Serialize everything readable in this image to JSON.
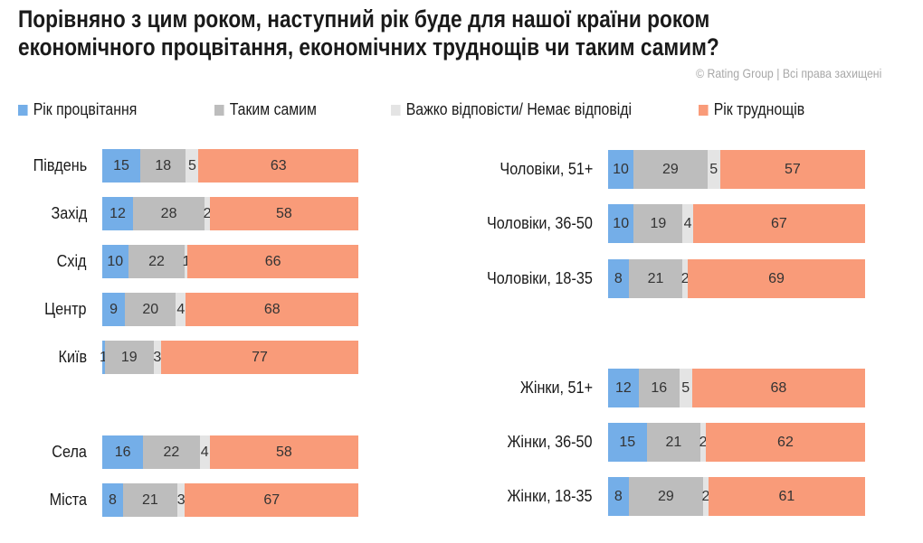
{
  "chart_data": {
    "type": "bar",
    "orientation": "horizontal",
    "stacked": true,
    "title": "Порівняно з цим роком, наступний рік буде для нашої країни роком економічного процвітання, економічних труднощів чи таким самим?",
    "title_lines": [
      "Порівняно з цим роком, наступний рік буде для нашої країни роком",
      "економічного процвітання, економічних труднощів чи таким самим?"
    ],
    "copyright": "© Rating Group | Всі права захищені",
    "legend_placement": "top",
    "grid": false,
    "series_names": [
      "Рік процвітання",
      "Таким самим",
      "Важко відповісти/ Немає відповіді",
      "Рік труднощів"
    ],
    "colors": [
      "#74aee8",
      "#bdbdbd",
      "#e4e4e4",
      "#f99b79"
    ],
    "panels": [
      {
        "categories": [
          "Південь",
          "Захід",
          "Схід",
          "Центр",
          "Київ",
          "Села",
          "Міста"
        ],
        "values": [
          [
            15,
            18,
            5,
            63
          ],
          [
            12,
            28,
            2,
            58
          ],
          [
            10,
            22,
            1,
            66
          ],
          [
            9,
            20,
            4,
            68
          ],
          [
            1,
            19,
            3,
            77
          ],
          [
            16,
            22,
            4,
            58
          ],
          [
            8,
            21,
            3,
            67
          ]
        ]
      },
      {
        "categories": [
          "Чоловіки, 51+",
          "Чоловіки, 36-50",
          "Чоловіки, 18-35",
          "Жінки, 51+",
          "Жінки, 36-50",
          "Жінки, 18-35"
        ],
        "values": [
          [
            10,
            29,
            5,
            57
          ],
          [
            10,
            19,
            4,
            67
          ],
          [
            8,
            21,
            2,
            69
          ],
          [
            12,
            16,
            5,
            68
          ],
          [
            15,
            21,
            2,
            62
          ],
          [
            8,
            29,
            2,
            61
          ]
        ]
      }
    ]
  }
}
